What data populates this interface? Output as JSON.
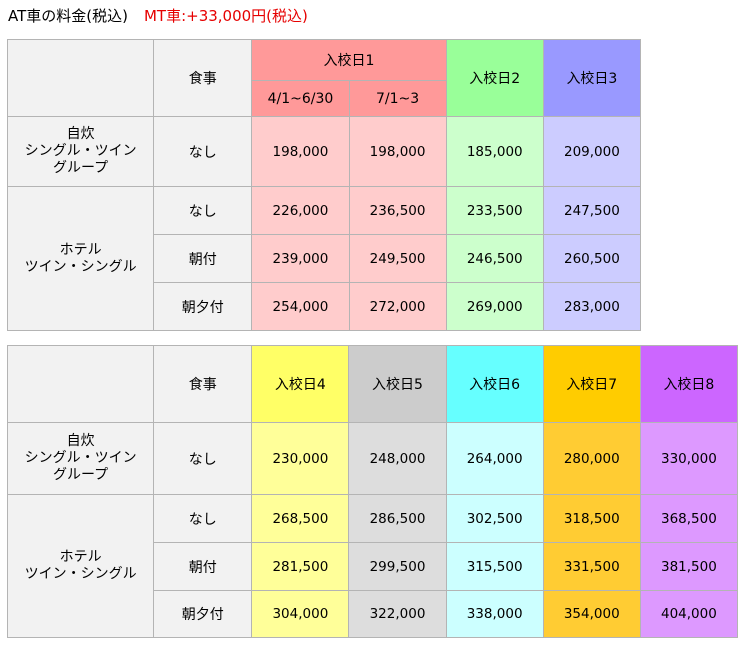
{
  "heading": {
    "at": "AT車の料金(税込)",
    "mt": "MT車:+33,000円(税込)"
  },
  "labels": {
    "meal": "食事",
    "self_cook": [
      "自炊",
      "シングル・ツイン",
      "グループ"
    ],
    "hotel": [
      "ホテル",
      "ツイン・シングル"
    ],
    "meal_none": "なし",
    "meal_breakfast": "朝付",
    "meal_two": "朝夕付"
  },
  "table1": {
    "date1": "入校日1",
    "date1_sub": [
      "4/1~6/30",
      "7/1~3"
    ],
    "date2": "入校日2",
    "date3": "入校日3",
    "rows": [
      [
        "198,000",
        "198,000",
        "185,000",
        "209,000"
      ],
      [
        "226,000",
        "236,500",
        "233,500",
        "247,500"
      ],
      [
        "239,000",
        "249,500",
        "246,500",
        "260,500"
      ],
      [
        "254,000",
        "272,000",
        "269,000",
        "283,000"
      ]
    ]
  },
  "table2": {
    "dates": [
      "入校日4",
      "入校日5",
      "入校日6",
      "入校日7",
      "入校日8"
    ],
    "rows": [
      [
        "230,000",
        "248,000",
        "264,000",
        "280,000",
        "330,000"
      ],
      [
        "268,500",
        "286,500",
        "302,500",
        "318,500",
        "368,500"
      ],
      [
        "281,500",
        "299,500",
        "315,500",
        "331,500",
        "381,500"
      ],
      [
        "304,000",
        "322,000",
        "338,000",
        "354,000",
        "404,000"
      ]
    ]
  },
  "colors": {
    "header_gray": "#f2f2f2",
    "date1_header": "#ff9999",
    "date1_cell": "#ffcccc",
    "date2_header": "#99ff99",
    "date2_cell": "#ccffcc",
    "date3_header": "#9999ff",
    "date3_cell": "#ccccff",
    "date4_header": "#ffff66",
    "date4_cell": "#ffff99",
    "date5_header": "#cccccc",
    "date5_cell": "#dddddd",
    "date6_header": "#66ffff",
    "date6_cell": "#ccffff",
    "date7_header": "#ffcc00",
    "date7_cell": "#ffcc33",
    "date8_header": "#cc66ff",
    "date8_cell": "#dd99ff",
    "mt_text": "#e60000"
  }
}
